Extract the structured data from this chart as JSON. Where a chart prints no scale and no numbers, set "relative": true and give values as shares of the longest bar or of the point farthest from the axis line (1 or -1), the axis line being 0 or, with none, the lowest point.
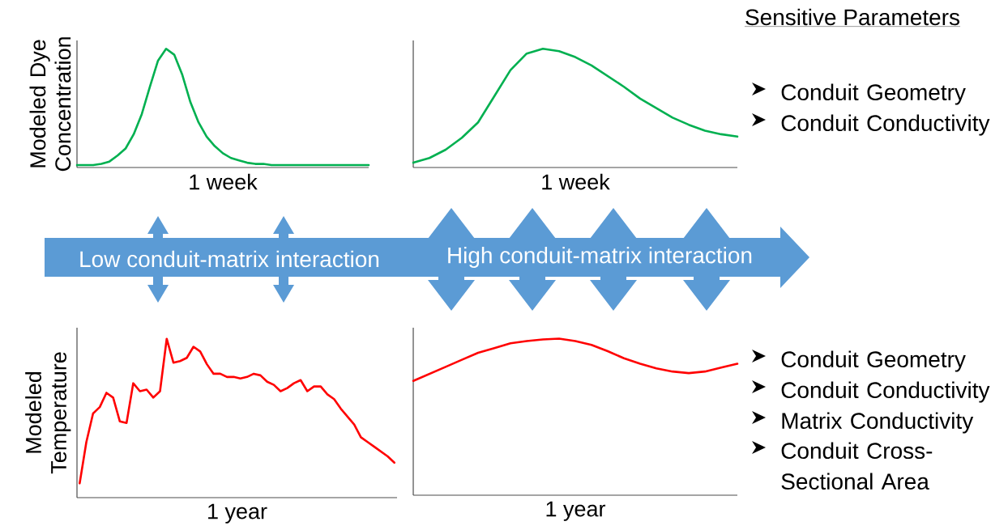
{
  "chart_data": [
    {
      "type": "line",
      "ylabel": "Modeled Dye Concentration",
      "xlabel": "1 week",
      "relative": true,
      "color": "#00b050",
      "categories": [
        null,
        null,
        null,
        null,
        null,
        null,
        null,
        null,
        null,
        null,
        null,
        null,
        null,
        null,
        null,
        null,
        null,
        null,
        null,
        null,
        null,
        null,
        null,
        null,
        null,
        null,
        null,
        null,
        null,
        null,
        null,
        null,
        null,
        null,
        null,
        null,
        null
      ],
      "values": [
        0.02,
        0.02,
        0.02,
        0.03,
        0.05,
        0.1,
        0.16,
        0.28,
        0.45,
        0.68,
        0.9,
        1.0,
        0.95,
        0.78,
        0.55,
        0.38,
        0.26,
        0.18,
        0.12,
        0.08,
        0.06,
        0.04,
        0.03,
        0.03,
        0.02,
        0.02,
        0.02,
        0.02,
        0.02,
        0.02,
        0.02,
        0.02,
        0.02,
        0.02,
        0.02,
        0.02,
        0.02
      ]
    },
    {
      "type": "line",
      "xlabel": "1 week",
      "relative": true,
      "color": "#00b050",
      "categories": [
        null,
        null,
        null,
        null,
        null,
        null,
        null,
        null,
        null,
        null,
        null,
        null,
        null,
        null,
        null,
        null,
        null,
        null,
        null,
        null,
        null
      ],
      "values": [
        0.04,
        0.08,
        0.15,
        0.25,
        0.38,
        0.6,
        0.82,
        0.96,
        1.0,
        0.98,
        0.93,
        0.86,
        0.77,
        0.68,
        0.58,
        0.5,
        0.42,
        0.36,
        0.31,
        0.28,
        0.26
      ]
    },
    {
      "type": "other",
      "title": "Sensitive Parameters",
      "annotations": [
        "Conduit Geometry",
        "Conduit Conductivity"
      ]
    },
    {
      "type": "other",
      "annotations": [
        "Low conduit-matrix interaction",
        "High conduit-matrix interaction"
      ]
    },
    {
      "type": "line",
      "ylabel": "Modeled Temperature",
      "xlabel": "1 year",
      "relative": true,
      "color": "#ff0000",
      "categories": [
        null,
        null,
        null,
        null,
        null,
        null,
        null,
        null,
        null,
        null,
        null,
        null,
        null,
        null,
        null,
        null,
        null,
        null,
        null,
        null,
        null,
        null,
        null,
        null,
        null,
        null,
        null,
        null,
        null,
        null,
        null,
        null,
        null,
        null,
        null,
        null,
        null,
        null,
        null,
        null,
        null,
        null,
        null,
        null,
        null,
        null,
        null,
        null
      ],
      "values": [
        0.09,
        0.35,
        0.53,
        0.57,
        0.66,
        0.63,
        0.48,
        0.47,
        0.72,
        0.67,
        0.68,
        0.63,
        0.67,
        1.0,
        0.85,
        0.86,
        0.88,
        0.95,
        0.92,
        0.84,
        0.78,
        0.78,
        0.76,
        0.76,
        0.75,
        0.76,
        0.78,
        0.77,
        0.73,
        0.71,
        0.67,
        0.69,
        0.72,
        0.74,
        0.67,
        0.7,
        0.7,
        0.65,
        0.62,
        0.56,
        0.51,
        0.46,
        0.38,
        0.35,
        0.32,
        0.29,
        0.26,
        0.22
      ]
    },
    {
      "type": "line",
      "xlabel": "1 year",
      "relative": true,
      "color": "#ff0000",
      "categories": [
        null,
        null,
        null,
        null,
        null,
        null,
        null,
        null,
        null,
        null,
        null,
        null,
        null,
        null,
        null,
        null,
        null,
        null,
        null,
        null,
        null
      ],
      "values": [
        0.73,
        0.775,
        0.82,
        0.865,
        0.91,
        0.94,
        0.97,
        0.985,
        0.995,
        1.0,
        0.985,
        0.96,
        0.92,
        0.875,
        0.84,
        0.81,
        0.79,
        0.78,
        0.79,
        0.815,
        0.84
      ]
    },
    {
      "type": "other",
      "annotations": [
        "Conduit Geometry",
        "Conduit Conductivity",
        "Matrix Conductivity",
        "Conduit Cross-Sectional Area"
      ]
    }
  ]
}
